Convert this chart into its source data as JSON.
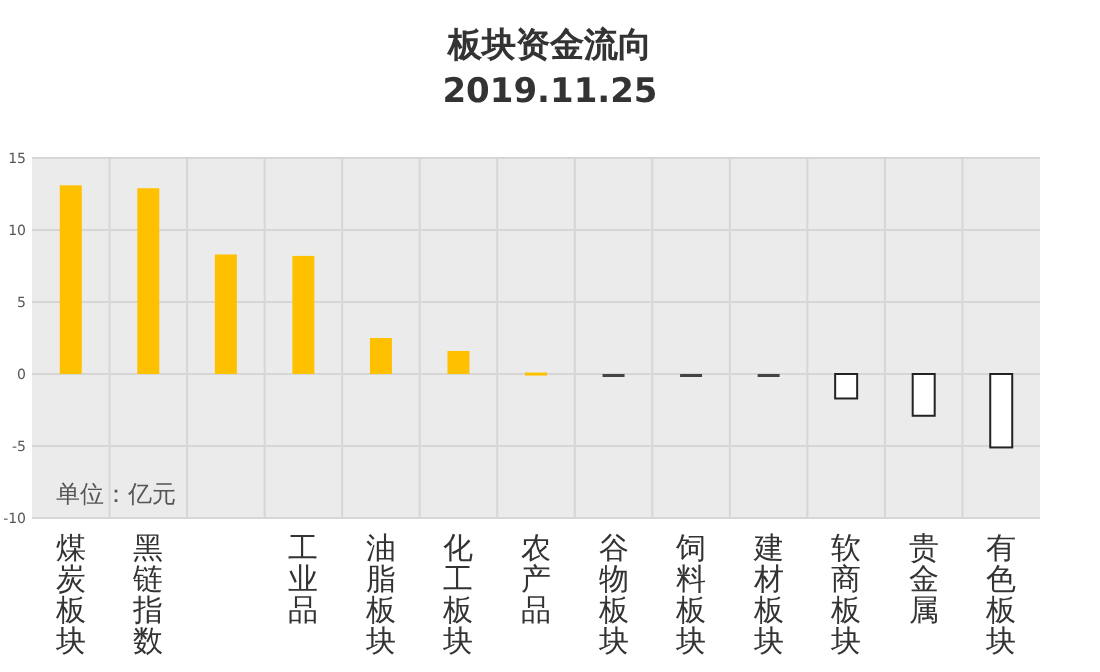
{
  "chart_data": {
    "type": "bar",
    "title": "板块资金流向",
    "subtitle": "2019.11.25",
    "categories": [
      "煤炭板块",
      "黑链指数",
      null,
      "工业品",
      "油脂板块",
      "化工板块",
      "农产品",
      "谷物板块",
      "饲料板块",
      "建材板块",
      "软商板块",
      "贵金属",
      "有色板块"
    ],
    "values": [
      13.1,
      12.9,
      8.3,
      8.2,
      2.5,
      1.6,
      0.1,
      -0.1,
      -0.1,
      -0.2,
      -1.7,
      -2.9,
      -5.1
    ],
    "colors": [
      "#ffc000",
      "#ffc000",
      "#ffc000",
      "#ffc000",
      "#ffc000",
      "#ffc000",
      "#ffc000",
      "#444444",
      "#444444",
      "#444444",
      "#ffffff",
      "#ffffff",
      "#ffffff"
    ],
    "ylim": [
      -10,
      15
    ],
    "yticks": [
      -10,
      -5,
      0,
      5,
      10,
      15
    ],
    "grid": true,
    "annotations": [
      "单位：亿元"
    ]
  }
}
